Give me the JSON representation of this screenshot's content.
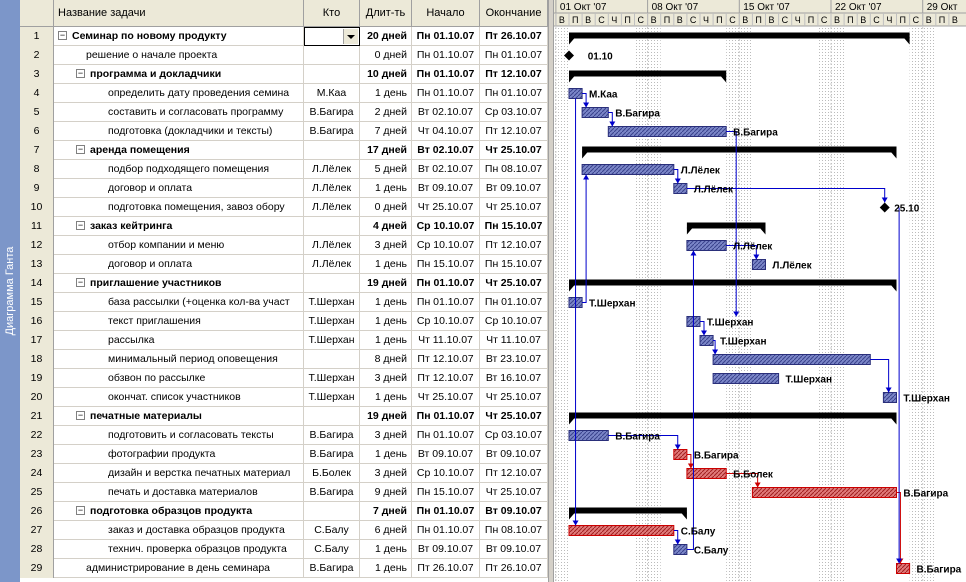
{
  "view_label": "Диаграмма Ганта",
  "columns": {
    "num": "",
    "name": "Название задачи",
    "who": "Кто",
    "duration": "Длит-ть",
    "start": "Начало",
    "end": "Окончание"
  },
  "tasks": [
    {
      "id": "1",
      "name": "Семинар по новому продукту",
      "who": "",
      "dur": "20 дней",
      "start": "Пн 01.10.07",
      "end": "Пт 26.10.07",
      "level": 0,
      "summary": true
    },
    {
      "id": "2",
      "name": "решение о начале проекта",
      "who": "",
      "dur": "0 дней",
      "start": "Пн 01.10.07",
      "end": "Пн 01.10.07",
      "level": 1,
      "summary": false
    },
    {
      "id": "3",
      "name": "программа и докладчики",
      "who": "",
      "dur": "10 дней",
      "start": "Пн 01.10.07",
      "end": "Пт 12.10.07",
      "level": 1,
      "summary": true
    },
    {
      "id": "4",
      "name": "определить дату проведения семина",
      "who": "М.Каа",
      "dur": "1 день",
      "start": "Пн 01.10.07",
      "end": "Пн 01.10.07",
      "level": 2,
      "summary": false
    },
    {
      "id": "5",
      "name": "составить и согласовать программу",
      "who": "В.Багира",
      "dur": "2 дней",
      "start": "Вт 02.10.07",
      "end": "Ср 03.10.07",
      "level": 2,
      "summary": false
    },
    {
      "id": "6",
      "name": "подготовка (докладчики и тексты)",
      "who": "В.Багира",
      "dur": "7 дней",
      "start": "Чт 04.10.07",
      "end": "Пт 12.10.07",
      "level": 2,
      "summary": false
    },
    {
      "id": "7",
      "name": "аренда помещения",
      "who": "",
      "dur": "17 дней",
      "start": "Вт 02.10.07",
      "end": "Чт 25.10.07",
      "level": 1,
      "summary": true
    },
    {
      "id": "8",
      "name": "подбор подходящего помещения",
      "who": "Л.Лёлек",
      "dur": "5 дней",
      "start": "Вт 02.10.07",
      "end": "Пн 08.10.07",
      "level": 2,
      "summary": false
    },
    {
      "id": "9",
      "name": "договор и оплата",
      "who": "Л.Лёлек",
      "dur": "1 день",
      "start": "Вт 09.10.07",
      "end": "Вт 09.10.07",
      "level": 2,
      "summary": false
    },
    {
      "id": "10",
      "name": "подготовка помещения, завоз обору",
      "who": "Л.Лёлек",
      "dur": "0 дней",
      "start": "Чт 25.10.07",
      "end": "Чт 25.10.07",
      "level": 2,
      "summary": false
    },
    {
      "id": "11",
      "name": "заказ кейтринга",
      "who": "",
      "dur": "4 дней",
      "start": "Ср 10.10.07",
      "end": "Пн 15.10.07",
      "level": 1,
      "summary": true
    },
    {
      "id": "12",
      "name": "отбор компании и меню",
      "who": "Л.Лёлек",
      "dur": "3 дней",
      "start": "Ср 10.10.07",
      "end": "Пт 12.10.07",
      "level": 2,
      "summary": false
    },
    {
      "id": "13",
      "name": "договор и оплата",
      "who": "Л.Лёлек",
      "dur": "1 день",
      "start": "Пн 15.10.07",
      "end": "Пн 15.10.07",
      "level": 2,
      "summary": false
    },
    {
      "id": "14",
      "name": "приглашение участников",
      "who": "",
      "dur": "19 дней",
      "start": "Пн 01.10.07",
      "end": "Чт 25.10.07",
      "level": 1,
      "summary": true
    },
    {
      "id": "15",
      "name": "база рассылки (+оценка кол-ва участ",
      "who": "Т.Шерхан",
      "dur": "1 день",
      "start": "Пн 01.10.07",
      "end": "Пн 01.10.07",
      "level": 2,
      "summary": false
    },
    {
      "id": "16",
      "name": "текст приглашения",
      "who": "Т.Шерхан",
      "dur": "1 день",
      "start": "Ср 10.10.07",
      "end": "Ср 10.10.07",
      "level": 2,
      "summary": false
    },
    {
      "id": "17",
      "name": "рассылка",
      "who": "Т.Шерхан",
      "dur": "1 день",
      "start": "Чт 11.10.07",
      "end": "Чт 11.10.07",
      "level": 2,
      "summary": false
    },
    {
      "id": "18",
      "name": "минимальный период оповещения",
      "who": "",
      "dur": "8 дней",
      "start": "Пт 12.10.07",
      "end": "Вт 23.10.07",
      "level": 2,
      "summary": false
    },
    {
      "id": "19",
      "name": "обзвон по рассылке",
      "who": "Т.Шерхан",
      "dur": "3 дней",
      "start": "Пт 12.10.07",
      "end": "Вт 16.10.07",
      "level": 2,
      "summary": false
    },
    {
      "id": "20",
      "name": "окончат. список участников",
      "who": "Т.Шерхан",
      "dur": "1 день",
      "start": "Чт 25.10.07",
      "end": "Чт 25.10.07",
      "level": 2,
      "summary": false
    },
    {
      "id": "21",
      "name": "печатные материалы",
      "who": "",
      "dur": "19 дней",
      "start": "Пн 01.10.07",
      "end": "Чт 25.10.07",
      "level": 1,
      "summary": true
    },
    {
      "id": "22",
      "name": "подготовить и согласовать тексты",
      "who": "В.Багира",
      "dur": "3 дней",
      "start": "Пн 01.10.07",
      "end": "Ср 03.10.07",
      "level": 2,
      "summary": false
    },
    {
      "id": "23",
      "name": "фотографии продукта",
      "who": "В.Багира",
      "dur": "1 день",
      "start": "Вт 09.10.07",
      "end": "Вт 09.10.07",
      "level": 2,
      "summary": false
    },
    {
      "id": "24",
      "name": "дизайн и верстка печатных материал",
      "who": "Б.Болек",
      "dur": "3 дней",
      "start": "Ср 10.10.07",
      "end": "Пт 12.10.07",
      "level": 2,
      "summary": false
    },
    {
      "id": "25",
      "name": "печать и доставка материалов",
      "who": "В.Багира",
      "dur": "9 дней",
      "start": "Пн 15.10.07",
      "end": "Чт 25.10.07",
      "level": 2,
      "summary": false
    },
    {
      "id": "26",
      "name": "подготовка образцов продукта",
      "who": "",
      "dur": "7 дней",
      "start": "Пн 01.10.07",
      "end": "Вт 09.10.07",
      "level": 1,
      "summary": true
    },
    {
      "id": "27",
      "name": "заказ и доставка образцов продукта",
      "who": "С.Балу",
      "dur": "6 дней",
      "start": "Пн 01.10.07",
      "end": "Пн 08.10.07",
      "level": 2,
      "summary": false
    },
    {
      "id": "28",
      "name": "технич. проверка образцов продукта",
      "who": "С.Балу",
      "dur": "1 день",
      "start": "Вт 09.10.07",
      "end": "Вт 09.10.07",
      "level": 2,
      "summary": false
    },
    {
      "id": "29",
      "name": "администрирование в день семинара",
      "who": "В.Багира",
      "dur": "1 день",
      "start": "Пт 26.10.07",
      "end": "Пт 26.10.07",
      "level": 1,
      "summary": false
    }
  ],
  "timescale": {
    "weeks": [
      "01 Окт '07",
      "08 Окт '07",
      "15 Окт '07",
      "22 Окт '07",
      "29 Окт"
    ],
    "day_letters": [
      "В",
      "П",
      "В",
      "С",
      "Ч",
      "П",
      "С"
    ]
  },
  "gantt_labels": [
    {
      "row": 2,
      "text": "01.10"
    },
    {
      "row": 4,
      "text": "М.Каа"
    },
    {
      "row": 5,
      "text": "В.Багира"
    },
    {
      "row": 6,
      "text": "В.Багира"
    },
    {
      "row": 8,
      "text": "Л.Лёлек"
    },
    {
      "row": 9,
      "text": "Л.Лёлек"
    },
    {
      "row": 10,
      "text": "25.10"
    },
    {
      "row": 12,
      "text": "Л.Лёлек"
    },
    {
      "row": 13,
      "text": "Л.Лёлек"
    },
    {
      "row": 15,
      "text": "Т.Шерхан"
    },
    {
      "row": 16,
      "text": "Т.Шерхан"
    },
    {
      "row": 17,
      "text": "Т.Шерхан"
    },
    {
      "row": 19,
      "text": "Т.Шерхан"
    },
    {
      "row": 20,
      "text": "Т.Шерхан"
    },
    {
      "row": 22,
      "text": "В.Багира"
    },
    {
      "row": 23,
      "text": "В.Багира"
    },
    {
      "row": 24,
      "text": "Б.Болек"
    },
    {
      "row": 25,
      "text": "В.Багира"
    },
    {
      "row": 27,
      "text": "С.Балу"
    },
    {
      "row": 28,
      "text": "С.Балу"
    },
    {
      "row": 29,
      "text": "В.Багира"
    }
  ],
  "colors": {
    "task_bar": "#7b86c8",
    "critical_bar": "#e07a7a",
    "summary_bar": "#000000",
    "link": "#0000cc",
    "critical_link": "#cc0000",
    "sidebar": "#7c96c9"
  }
}
